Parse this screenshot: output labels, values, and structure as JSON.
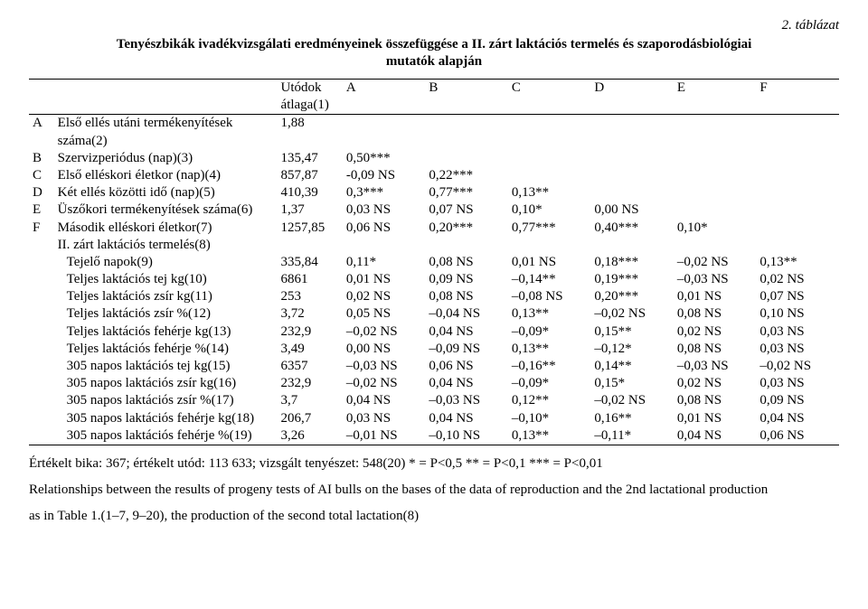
{
  "top_label": "2. táblázat",
  "title": "Tenyészbikák ivadékvizsgálati eredményeinek összefüggése a II. zárt laktációs termelés és szaporodásbiológiai",
  "subtitle": "mutatók alapján",
  "header": {
    "utodok": "Utódok",
    "atlaga": "átlaga(1)",
    "cols": [
      "A",
      "B",
      "C",
      "D",
      "E",
      "F"
    ]
  },
  "rows": [
    {
      "L": "A",
      "desc": "Első ellés utáni termékenyítések",
      "sub": "száma(2)",
      "u": "1,88",
      "v": [
        "",
        "",
        "",
        "",
        "",
        ""
      ]
    },
    {
      "L": "B",
      "desc": "Szervizperiódus (nap)(3)",
      "u": "135,47",
      "v": [
        "0,50***",
        "",
        "",
        "",
        "",
        ""
      ]
    },
    {
      "L": "C",
      "desc": "Első elléskori életkor (nap)(4)",
      "u": "857,87",
      "v": [
        "-0,09 NS",
        "0,22***",
        "",
        "",
        "",
        ""
      ]
    },
    {
      "L": "D",
      "desc": "Két ellés közötti idő (nap)(5)",
      "u": "410,39",
      "v": [
        "0,3***",
        "0,77***",
        "0,13**",
        "",
        "",
        ""
      ]
    },
    {
      "L": "E",
      "desc": "Üszőkori termékenyítések száma(6)",
      "u": "1,37",
      "v": [
        "0,03 NS",
        "0,07 NS",
        "0,10*",
        "0,00 NS",
        "",
        ""
      ]
    },
    {
      "L": "F",
      "desc": "Második elléskori életkor(7)",
      "u": "1257,85",
      "v": [
        "0,06 NS",
        "0,20***",
        "0,77***",
        "0,40***",
        "0,10*",
        ""
      ]
    },
    {
      "L": "",
      "desc": "II. zárt laktációs termelés(8)",
      "u": "",
      "v": [
        "",
        "",
        "",
        "",
        "",
        ""
      ]
    },
    {
      "L": "",
      "desc": "Tejelő napok(9)",
      "indent": true,
      "u": "335,84",
      "v": [
        "0,11*",
        "0,08 NS",
        "0,01 NS",
        "0,18***",
        "–0,02 NS",
        "0,13**"
      ]
    },
    {
      "L": "",
      "desc": "Teljes laktációs tej kg(10)",
      "indent": true,
      "u": "6861",
      "v": [
        "0,01 NS",
        "0,09 NS",
        "–0,14**",
        "0,19***",
        "–0,03 NS",
        "0,02 NS"
      ]
    },
    {
      "L": "",
      "desc": "Teljes laktációs zsír kg(11)",
      "indent": true,
      "u": "253",
      "v": [
        "0,02 NS",
        "0,08 NS",
        "–0,08 NS",
        "0,20***",
        "0,01 NS",
        "0,07 NS"
      ]
    },
    {
      "L": "",
      "desc": "Teljes laktációs zsír %(12)",
      "indent": true,
      "u": "3,72",
      "v": [
        "0,05 NS",
        "–0,04 NS",
        "0,13**",
        "–0,02 NS",
        "0,08 NS",
        "0,10 NS"
      ]
    },
    {
      "L": "",
      "desc": "Teljes laktációs fehérje kg(13)",
      "indent": true,
      "u": "232,9",
      "v": [
        "–0,02 NS",
        "0,04 NS",
        "–0,09*",
        "0,15**",
        "0,02 NS",
        "0,03 NS"
      ]
    },
    {
      "L": "",
      "desc": "Teljes laktációs fehérje %(14)",
      "indent": true,
      "u": "3,49",
      "v": [
        "0,00 NS",
        "–0,09 NS",
        "0,13**",
        "–0,12*",
        "0,08 NS",
        "0,03 NS"
      ]
    },
    {
      "L": "",
      "desc": "305 napos laktációs tej kg(15)",
      "indent": true,
      "u": "6357",
      "v": [
        "–0,03 NS",
        "0,06 NS",
        "–0,16**",
        "0,14**",
        "–0,03 NS",
        "–0,02 NS"
      ]
    },
    {
      "L": "",
      "desc": "305 napos laktációs zsír kg(16)",
      "indent": true,
      "u": "232,9",
      "v": [
        "–0,02 NS",
        "0,04 NS",
        "–0,09*",
        "0,15*",
        "0,02 NS",
        "0,03 NS"
      ]
    },
    {
      "L": "",
      "desc": "305 napos laktációs zsír %(17)",
      "indent": true,
      "u": "3,7",
      "v": [
        "0,04 NS",
        "–0,03 NS",
        "0,12**",
        "–0,02 NS",
        "0,08 NS",
        "0,09 NS"
      ]
    },
    {
      "L": "",
      "desc": "305 napos laktációs fehérje kg(18)",
      "indent": true,
      "u": "206,7",
      "v": [
        "0,03 NS",
        "0,04 NS",
        "–0,10*",
        "0,16**",
        "0,01 NS",
        "0,04 NS"
      ]
    },
    {
      "L": "",
      "desc": "305 napos laktációs fehérje %(19)",
      "indent": true,
      "u": "3,26",
      "v": [
        "–0,01 NS",
        "–0,10 NS",
        "0,13**",
        "–0,11*",
        "0,04 NS",
        "0,06 NS"
      ]
    }
  ],
  "footer": {
    "line1": "Értékelt bika: 367; értékelt utód: 113 633; vizsgált tenyészet: 548(20)   * = P<0,5     ** = P<0,1     *** = P<0,01",
    "line2": "Relationships between the results of progeny tests of AI bulls on the bases of the data of reproduction and the 2nd lactational production",
    "line3": "as in Table 1.(1–7, 9–20), the production of the second total lactation(8)"
  }
}
